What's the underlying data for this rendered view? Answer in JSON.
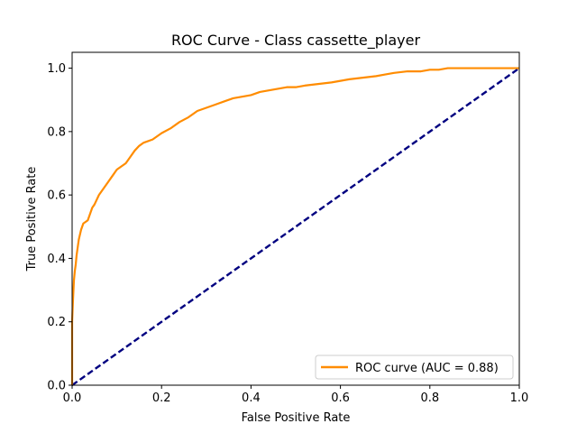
{
  "chart_data": {
    "type": "line",
    "title": "ROC Curve - Class cassette_player",
    "xlabel": "False Positive Rate",
    "ylabel": "True Positive Rate",
    "xlim": [
      0.0,
      1.0
    ],
    "ylim": [
      0.0,
      1.05
    ],
    "xticks": [
      "0.0",
      "0.2",
      "0.4",
      "0.6",
      "0.8",
      "1.0"
    ],
    "yticks": [
      "0.0",
      "0.2",
      "0.4",
      "0.6",
      "0.8",
      "1.0"
    ],
    "grid": false,
    "legend_position": "lower-right",
    "series": [
      {
        "name": "ROC curve (AUC = 0.88)",
        "color": "#ff8c00",
        "style": "solid",
        "x": [
          0.0,
          0.0,
          0.002,
          0.004,
          0.006,
          0.008,
          0.01,
          0.012,
          0.015,
          0.02,
          0.025,
          0.03,
          0.035,
          0.04,
          0.045,
          0.05,
          0.06,
          0.07,
          0.08,
          0.09,
          0.1,
          0.11,
          0.12,
          0.13,
          0.14,
          0.15,
          0.16,
          0.18,
          0.2,
          0.22,
          0.24,
          0.26,
          0.28,
          0.3,
          0.32,
          0.34,
          0.36,
          0.38,
          0.4,
          0.42,
          0.44,
          0.46,
          0.48,
          0.5,
          0.52,
          0.55,
          0.58,
          0.6,
          0.62,
          0.65,
          0.68,
          0.7,
          0.72,
          0.75,
          0.78,
          0.8,
          0.82,
          0.84,
          0.86,
          0.9,
          0.95,
          1.0
        ],
        "y": [
          0.0,
          0.2,
          0.27,
          0.33,
          0.36,
          0.38,
          0.41,
          0.43,
          0.46,
          0.49,
          0.51,
          0.515,
          0.52,
          0.54,
          0.56,
          0.57,
          0.6,
          0.62,
          0.64,
          0.66,
          0.68,
          0.69,
          0.7,
          0.72,
          0.74,
          0.755,
          0.765,
          0.775,
          0.795,
          0.81,
          0.83,
          0.845,
          0.865,
          0.875,
          0.885,
          0.895,
          0.905,
          0.91,
          0.915,
          0.925,
          0.93,
          0.935,
          0.94,
          0.94,
          0.945,
          0.95,
          0.955,
          0.96,
          0.965,
          0.97,
          0.975,
          0.98,
          0.985,
          0.99,
          0.99,
          0.995,
          0.995,
          1.0,
          1.0,
          1.0,
          1.0,
          1.0
        ]
      },
      {
        "color": "#000080",
        "style": "dashed",
        "x": [
          0.0,
          1.0
        ],
        "y": [
          0.0,
          1.0
        ]
      }
    ]
  }
}
